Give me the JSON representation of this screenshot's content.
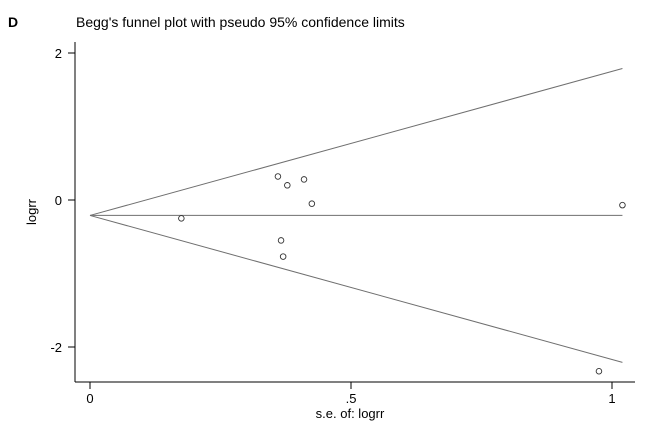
{
  "figure": {
    "panel_label": "D"
  },
  "chart_data": {
    "type": "scatter",
    "title": "Begg's funnel plot with pseudo 95% confidence limits",
    "xlabel": "s.e. of: logrr",
    "ylabel": "logrr",
    "xlim": [
      0,
      1.03
    ],
    "ylim": [
      -2.45,
      2.15
    ],
    "x_ticks": [
      {
        "value": 0,
        "label": "0"
      },
      {
        "value": 0.5,
        "label": ".5"
      },
      {
        "value": 1,
        "label": "1"
      }
    ],
    "y_ticks": [
      {
        "value": 2,
        "label": "2"
      },
      {
        "value": 0,
        "label": "0"
      },
      {
        "value": -2,
        "label": "-2"
      }
    ],
    "grid": false,
    "pooled_estimate": -0.21,
    "funnel_x_max": 1.02,
    "points": [
      {
        "x": 0.175,
        "y": -0.25
      },
      {
        "x": 0.36,
        "y": 0.32
      },
      {
        "x": 0.378,
        "y": 0.2
      },
      {
        "x": 0.41,
        "y": 0.28
      },
      {
        "x": 0.425,
        "y": -0.05
      },
      {
        "x": 0.366,
        "y": -0.55
      },
      {
        "x": 0.37,
        "y": -0.77
      },
      {
        "x": 1.02,
        "y": -0.07
      },
      {
        "x": 0.975,
        "y": -2.33
      }
    ]
  }
}
